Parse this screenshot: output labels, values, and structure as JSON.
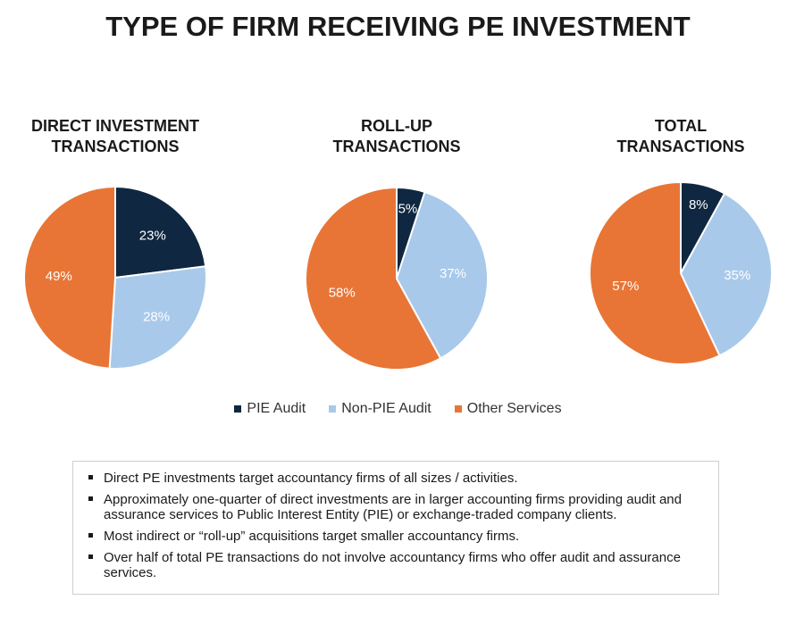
{
  "title": "TYPE OF FIRM RECEIVING PE INVESTMENT",
  "colors": {
    "pie_audit": "#0f2740",
    "non_pie_audit": "#a8c9ea",
    "other_services": "#e87535"
  },
  "chart_data": [
    {
      "type": "pie",
      "title_lines": [
        "DIRECT INVESTMENT",
        "TRANSACTIONS"
      ],
      "categories": [
        "PIE Audit",
        "Non-PIE Audit",
        "Other Services"
      ],
      "values": [
        23,
        28,
        49
      ],
      "labels": [
        "23%",
        "28%",
        "49%"
      ]
    },
    {
      "type": "pie",
      "title_lines": [
        "ROLL-UP",
        "TRANSACTIONS"
      ],
      "categories": [
        "PIE Audit",
        "Non-PIE Audit",
        "Other Services"
      ],
      "values": [
        5,
        37,
        58
      ],
      "labels": [
        "5%",
        "37%",
        "58%"
      ]
    },
    {
      "type": "pie",
      "title_lines": [
        "TOTAL",
        "TRANSACTIONS"
      ],
      "categories": [
        "PIE Audit",
        "Non-PIE Audit",
        "Other Services"
      ],
      "values": [
        8,
        35,
        57
      ],
      "labels": [
        "8%",
        "35%",
        "57%"
      ]
    }
  ],
  "legend": [
    "PIE Audit",
    "Non-PIE Audit",
    "Other Services"
  ],
  "notes": [
    "Direct PE investments target accountancy firms of all sizes / activities.",
    "Approximately one-quarter of direct investments are in larger accounting firms providing audit and assurance services to Public Interest Entity (PIE) or exchange-traded company clients.",
    "Most indirect or “roll-up” acquisitions target smaller accountancy firms.",
    "Over half of total PE transactions do not involve accountancy firms who offer audit and assurance services."
  ]
}
